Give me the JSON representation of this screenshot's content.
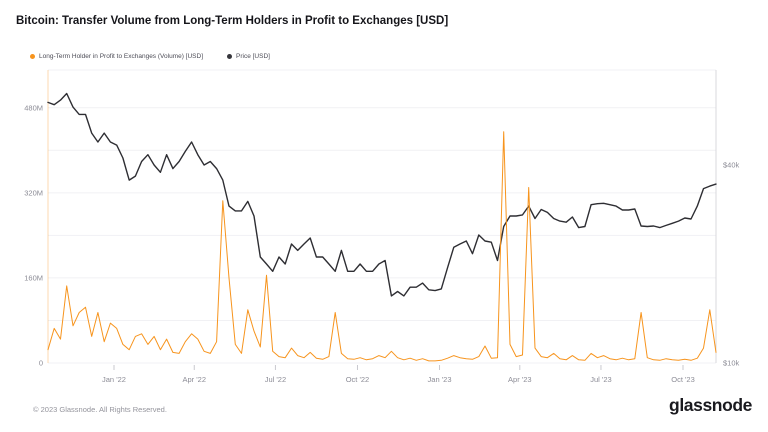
{
  "title": "Bitcoin: Transfer Volume from Long-Term Holders in Profit to Exchanges [USD]",
  "legend": {
    "items": [
      {
        "label": "Long-Term Holder in Profit to Exchanges (Volume) [USD]",
        "color": "#f7941d"
      },
      {
        "label": "Price [USD]",
        "color": "#36363c"
      }
    ]
  },
  "footer": {
    "copyright": "© 2023 Glassnode. All Rights Reserved.",
    "brand": "glassnode"
  },
  "chart_data": {
    "type": "line",
    "title": "Bitcoin: Transfer Volume from Long-Term Holders in Profit to Exchanges [USD]",
    "legend_position": "top-left",
    "grid": "horizontal",
    "x_start_date": "2021-10-18",
    "x_step_days": 7,
    "x_labels": [
      {
        "text": "Jan '22",
        "day": 74
      },
      {
        "text": "Apr '22",
        "day": 164
      },
      {
        "text": "Jul '22",
        "day": 255
      },
      {
        "text": "Oct '22",
        "day": 347
      },
      {
        "text": "Jan '23",
        "day": 439
      },
      {
        "text": "Apr '23",
        "day": 529
      },
      {
        "text": "Jul '23",
        "day": 620
      },
      {
        "text": "Oct '23",
        "day": 712
      }
    ],
    "left_axis": {
      "scale": "linear",
      "unit": "USD millions",
      "ticks": [
        {
          "label": "480M",
          "value": 480
        },
        {
          "label": "320M",
          "value": 320
        },
        {
          "label": "160M",
          "value": 160
        },
        {
          "label": "0",
          "value": 0
        }
      ],
      "gridline_step": 80,
      "value_at_plot_top": 551
    },
    "right_axis": {
      "scale": "log",
      "unit": "USD thousands",
      "ticks": [
        {
          "label": "$40k",
          "value": 40
        },
        {
          "label": "$10k",
          "value": 10
        }
      ],
      "bottom_value": 10,
      "top_value": 77.8
    },
    "series": [
      {
        "name": "Long-Term Holder in Profit to Exchanges (Volume) [USD]",
        "axis": "left",
        "color": "#f7941d",
        "unit": "USD millions",
        "values": [
          25,
          65,
          45,
          145,
          70,
          95,
          105,
          50,
          95,
          40,
          75,
          65,
          35,
          25,
          50,
          55,
          35,
          50,
          25,
          45,
          20,
          18,
          40,
          55,
          45,
          22,
          18,
          40,
          305,
          160,
          35,
          18,
          100,
          60,
          30,
          165,
          22,
          12,
          10,
          28,
          14,
          10,
          20,
          9,
          7,
          12,
          95,
          18,
          8,
          7,
          10,
          6,
          8,
          14,
          10,
          22,
          10,
          6,
          9,
          5,
          8,
          4,
          4,
          5,
          9,
          14,
          10,
          8,
          7,
          12,
          32,
          9,
          10,
          435,
          35,
          12,
          15,
          330,
          28,
          12,
          10,
          18,
          8,
          6,
          14,
          6,
          5,
          18,
          10,
          14,
          8,
          6,
          9,
          6,
          8,
          95,
          10,
          6,
          5,
          8,
          6,
          5,
          7,
          5,
          9,
          28,
          100,
          20
        ]
      },
      {
        "name": "Price [USD]",
        "axis": "right",
        "color": "#2e2e33",
        "unit": "USD thousands",
        "values": [
          62,
          61,
          63,
          66,
          60,
          57,
          57,
          50,
          47,
          50,
          47,
          46,
          42,
          36,
          37,
          41,
          43,
          40,
          38,
          43,
          39,
          41,
          44,
          47,
          43,
          40,
          41,
          39,
          36,
          30,
          29,
          29,
          31,
          28,
          21,
          20,
          19,
          21,
          20,
          23,
          22,
          23,
          24,
          21,
          21,
          20,
          19,
          22,
          19,
          19,
          20,
          19,
          19,
          20,
          20.5,
          16,
          16.5,
          16,
          17,
          17,
          17.5,
          16.7,
          16.6,
          16.8,
          19.5,
          22.5,
          23,
          23.5,
          21.5,
          24.5,
          23.5,
          23.3,
          20.5,
          26,
          28,
          28,
          28.2,
          30,
          27.5,
          29.3,
          28.7,
          27.5,
          27,
          26.8,
          27.8,
          25.8,
          26,
          30.3,
          30.5,
          30.6,
          30.3,
          30,
          29.2,
          29.2,
          29.4,
          26.1,
          26,
          26.1,
          25.8,
          26.2,
          26.6,
          27,
          27.6,
          27.4,
          30,
          33.9,
          34.5,
          35
        ]
      }
    ]
  }
}
